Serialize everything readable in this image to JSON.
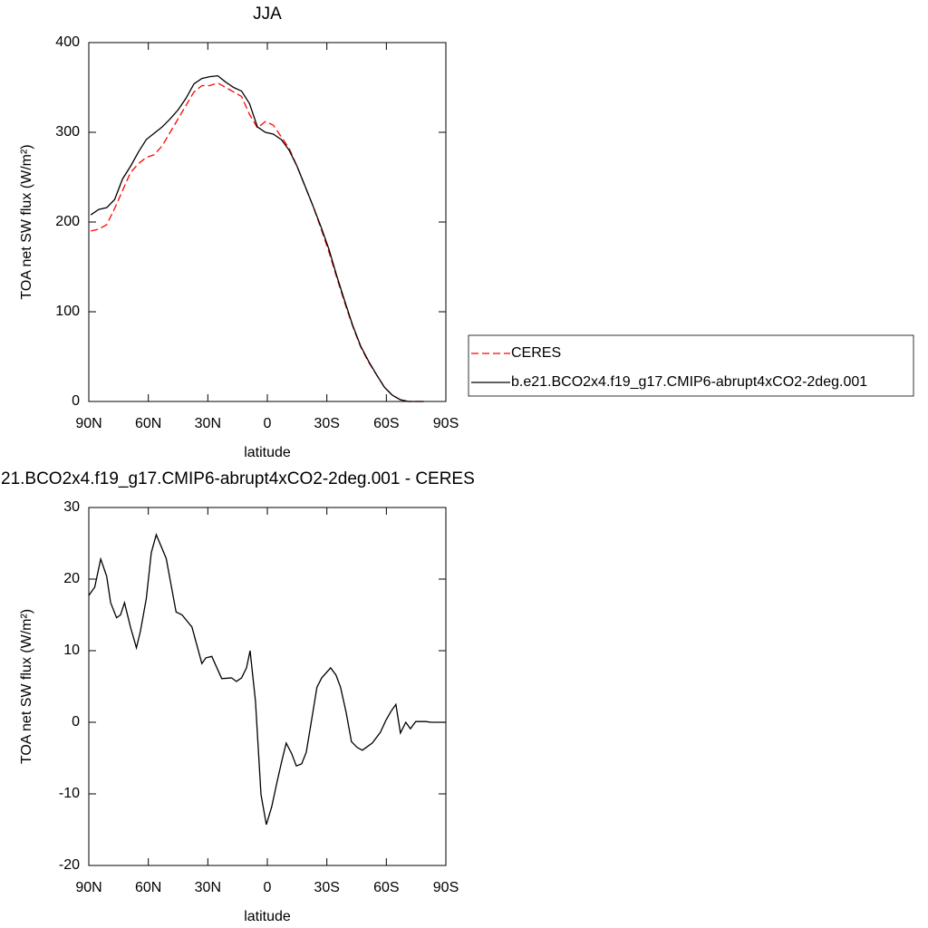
{
  "chart_data": [
    {
      "type": "line",
      "title": "JJA",
      "xlabel": "latitude",
      "ylabel": "TOA net SW flux (W/m²)",
      "x": [
        89,
        85,
        81,
        77,
        73,
        69,
        65,
        61,
        57,
        53,
        49,
        45,
        41,
        37,
        33,
        29,
        25,
        21,
        17,
        13,
        9,
        5,
        1,
        -3,
        -7,
        -11,
        -15,
        -19,
        -23,
        -27,
        -31,
        -35,
        -39,
        -43,
        -47,
        -51,
        -55,
        -59,
        -63,
        -67,
        -71,
        -75,
        -79
      ],
      "series": [
        {
          "name": "CERES",
          "color": "#ff0000",
          "linestyle": "dashed",
          "values": [
            190,
            192,
            197,
            215,
            235,
            255,
            265,
            272,
            275,
            285,
            300,
            315,
            330,
            345,
            352,
            352,
            355,
            350,
            345,
            340,
            320,
            305,
            312,
            308,
            295,
            282,
            262,
            240,
            218,
            193,
            167,
            138,
            110,
            84,
            61,
            44,
            30,
            16,
            7,
            2,
            0,
            0,
            0
          ]
        },
        {
          "name": "b.e21.BCO2x4.f19_g17.CMIP6-abrupt4xCO2-2deg.001",
          "color": "#000000",
          "linestyle": "solid",
          "values": [
            208,
            214,
            216,
            225,
            248,
            262,
            278,
            292,
            299,
            306,
            315,
            325,
            338,
            354,
            360,
            362,
            363,
            356,
            350,
            346,
            332,
            306,
            300,
            298,
            292,
            280,
            262,
            240,
            218,
            195,
            170,
            140,
            112,
            85,
            62,
            45,
            30,
            16,
            7,
            2,
            0,
            0,
            0
          ]
        }
      ],
      "xlim": [
        90,
        -90
      ],
      "xticks": [
        {
          "value": 90,
          "label": "90N"
        },
        {
          "value": 60,
          "label": "60N"
        },
        {
          "value": 30,
          "label": "30N"
        },
        0,
        {
          "value": -30,
          "label": "30S"
        },
        {
          "value": -60,
          "label": "60S"
        },
        {
          "value": -90,
          "label": "90S"
        }
      ],
      "ylim": [
        0,
        400
      ],
      "yticks": [
        0,
        100,
        200,
        300,
        400
      ],
      "legend": "right"
    },
    {
      "type": "line",
      "title": "21.BCO2x4.f19_g17.CMIP6-abrupt4xCO2-2deg.001 - CERES",
      "xlabel": "latitude",
      "ylabel": "TOA net SW flux (W/m²)",
      "x": [
        90,
        87,
        84,
        81,
        79,
        76,
        74,
        72,
        69,
        66,
        64,
        61,
        58.5,
        56,
        51,
        46,
        43,
        38,
        33,
        31,
        28,
        23,
        18,
        15.6,
        13,
        10.5,
        8.7,
        6,
        3.2,
        0.5,
        -2.2,
        -5,
        -7.3,
        -9.5,
        -12.3,
        -14.6,
        -17.3,
        -19.6,
        -22.3,
        -25,
        -27.4,
        -31.9,
        -34.6,
        -36.9,
        -39.7,
        -42.4,
        -45.2,
        -47.9,
        -52.9,
        -57,
        -59.8,
        -62.5,
        -64.8,
        -67.1,
        -69.8,
        -72.1,
        -74.8,
        -79.9,
        -82.6,
        -90
      ],
      "values": [
        17.7,
        18.9,
        22.8,
        20.4,
        16.7,
        14.6,
        15,
        16.7,
        13.3,
        10.4,
        12.7,
        17.3,
        23.7,
        26.2,
        22.9,
        15.4,
        15,
        13.3,
        8.2,
        9,
        9.2,
        6.1,
        6.2,
        5.7,
        6.2,
        7.6,
        10,
        3,
        -10.1,
        -14.3,
        -11.8,
        -8.2,
        -5.4,
        -2.9,
        -4.4,
        -6.1,
        -5.8,
        -4.2,
        0.3,
        4.9,
        6.2,
        7.6,
        6.6,
        4.9,
        1.4,
        -2.7,
        -3.5,
        -3.9,
        -2.9,
        -1.4,
        0.3,
        1.6,
        2.5,
        -1.5,
        0,
        -0.9,
        0.1,
        0.1,
        0,
        0
      ],
      "color": "#000000",
      "xlim": [
        90,
        -90
      ],
      "xticks": [
        {
          "value": 90,
          "label": "90N"
        },
        {
          "value": 60,
          "label": "60N"
        },
        {
          "value": 30,
          "label": "30N"
        },
        0,
        {
          "value": -30,
          "label": "30S"
        },
        {
          "value": -60,
          "label": "60S"
        },
        {
          "value": -90,
          "label": "90S"
        }
      ],
      "ylim": [
        -20,
        30
      ],
      "yticks": [
        -20,
        -10,
        0,
        10,
        20,
        30
      ]
    }
  ]
}
